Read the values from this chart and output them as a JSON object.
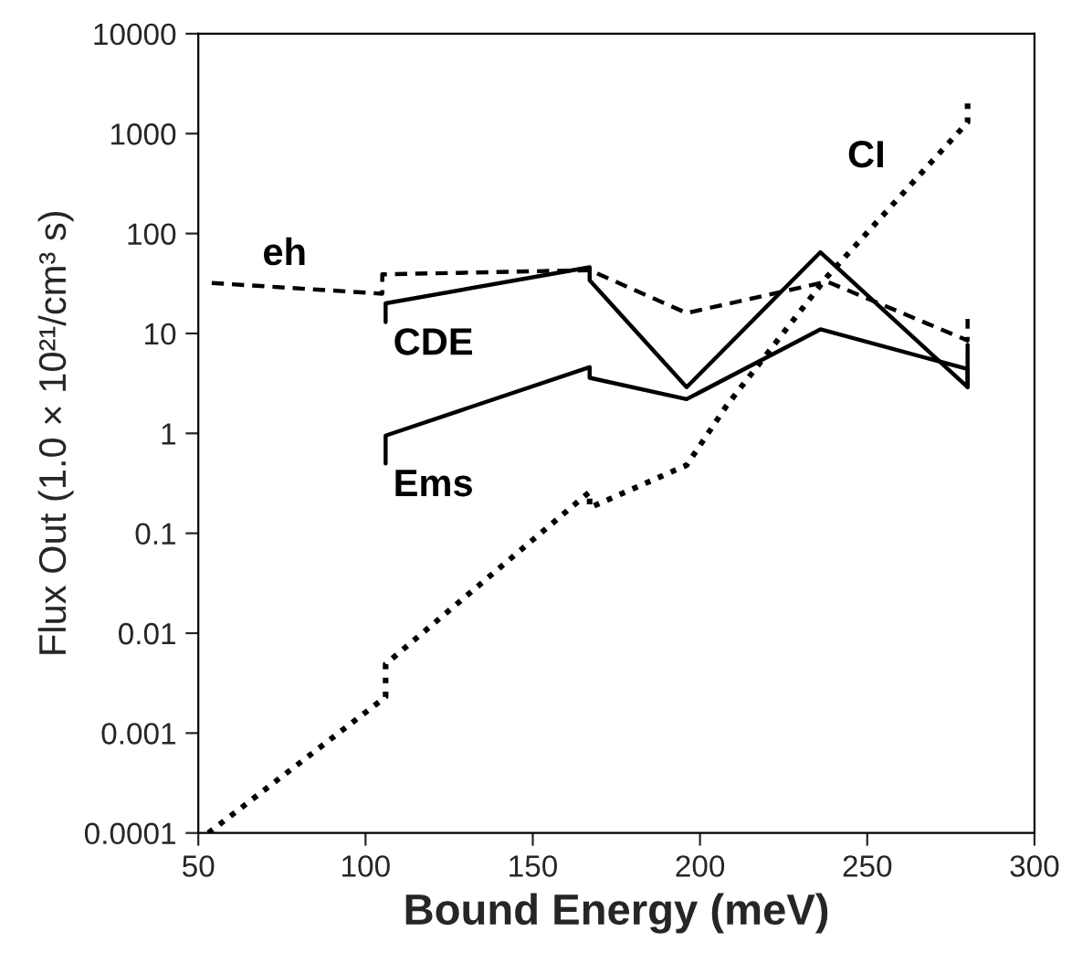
{
  "chart_data": {
    "type": "line",
    "xlabel": "Bound Energy (meV)",
    "ylabel": "Flux Out (1.0 × 10²¹/cm³ s)",
    "log": "y",
    "xlim": [
      50,
      300
    ],
    "xticks": [
      50,
      100,
      150,
      200,
      250,
      300
    ],
    "ylim": [
      0.0001,
      10000
    ],
    "yticks": [
      0.0001,
      0.001,
      0.01,
      0.1,
      1,
      10,
      100,
      1000,
      10000
    ],
    "grid": false,
    "legend": false,
    "marker": "none",
    "series": [
      {
        "name": "eh",
        "color": "#000000",
        "line_style": "dashed",
        "x": [
          54,
          105,
          105,
          167,
          196,
          238,
          280,
          280
        ],
        "values": [
          32,
          25,
          39,
          43,
          16,
          33,
          8.5,
          14
        ]
      },
      {
        "name": "CDE",
        "color": "#000000",
        "line_style": "solid",
        "x": [
          106,
          106,
          167,
          167,
          196,
          236,
          280,
          280
        ],
        "values": [
          13,
          20,
          46,
          34,
          2.9,
          65,
          2.9,
          7.7
        ]
      },
      {
        "name": "Ems",
        "color": "#000000",
        "line_style": "solid",
        "x": [
          106,
          106,
          167,
          167,
          196,
          236,
          280,
          280
        ],
        "values": [
          0.5,
          0.95,
          4.6,
          3.6,
          2.2,
          11,
          4.4,
          2.9
        ]
      },
      {
        "name": "CI",
        "color": "#000000",
        "line_style": "dotted",
        "x": [
          53,
          106,
          106,
          167,
          167,
          196,
          208,
          238,
          280,
          280
        ],
        "values": [
          0.0001,
          0.0023,
          0.0049,
          0.26,
          0.18,
          0.48,
          1.9,
          37,
          1300,
          2300
        ]
      }
    ]
  }
}
